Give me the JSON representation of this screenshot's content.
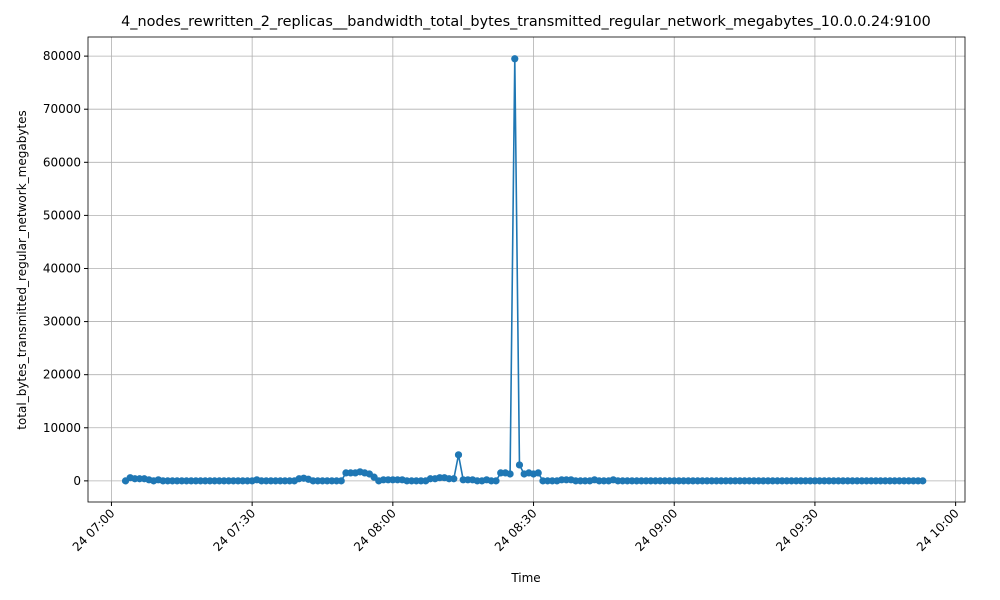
{
  "chart_data": {
    "type": "line",
    "title": "4_nodes_rewritten_2_replicas__bandwidth_total_bytes_transmitted_regular_network_megabytes_10.0.0.24:9100",
    "xlabel": "Time",
    "ylabel": "total_bytes_transmitted_regular_network_megabytes",
    "x": [
      "24 07:03",
      "24 07:04",
      "24 07:05",
      "24 07:06",
      "24 07:07",
      "24 07:08",
      "24 07:09",
      "24 07:10",
      "24 07:11",
      "24 07:12",
      "24 07:13",
      "24 07:14",
      "24 07:15",
      "24 07:16",
      "24 07:17",
      "24 07:18",
      "24 07:19",
      "24 07:20",
      "24 07:21",
      "24 07:22",
      "24 07:23",
      "24 07:24",
      "24 07:25",
      "24 07:26",
      "24 07:27",
      "24 07:28",
      "24 07:29",
      "24 07:30",
      "24 07:31",
      "24 07:32",
      "24 07:33",
      "24 07:34",
      "24 07:35",
      "24 07:36",
      "24 07:37",
      "24 07:38",
      "24 07:39",
      "24 07:40",
      "24 07:41",
      "24 07:42",
      "24 07:43",
      "24 07:44",
      "24 07:45",
      "24 07:46",
      "24 07:47",
      "24 07:48",
      "24 07:49",
      "24 07:50",
      "24 07:51",
      "24 07:52",
      "24 07:53",
      "24 07:54",
      "24 07:55",
      "24 07:56",
      "24 07:57",
      "24 07:58",
      "24 07:59",
      "24 08:00",
      "24 08:01",
      "24 08:02",
      "24 08:03",
      "24 08:04",
      "24 08:05",
      "24 08:06",
      "24 08:07",
      "24 08:08",
      "24 08:09",
      "24 08:10",
      "24 08:11",
      "24 08:12",
      "24 08:13",
      "24 08:14",
      "24 08:15",
      "24 08:16",
      "24 08:17",
      "24 08:18",
      "24 08:19",
      "24 08:20",
      "24 08:21",
      "24 08:22",
      "24 08:23",
      "24 08:24",
      "24 08:25",
      "24 08:26",
      "24 08:27",
      "24 08:28",
      "24 08:29",
      "24 08:30",
      "24 08:31",
      "24 08:32",
      "24 08:33",
      "24 08:34",
      "24 08:35",
      "24 08:36",
      "24 08:37",
      "24 08:38",
      "24 08:39",
      "24 08:40",
      "24 08:41",
      "24 08:42",
      "24 08:43",
      "24 08:44",
      "24 08:45",
      "24 08:46",
      "24 08:47",
      "24 08:48",
      "24 08:49",
      "24 08:50",
      "24 08:51",
      "24 08:52",
      "24 08:53",
      "24 08:54",
      "24 08:55",
      "24 08:56",
      "24 08:57",
      "24 08:58",
      "24 08:59",
      "24 09:00",
      "24 09:01",
      "24 09:02",
      "24 09:03",
      "24 09:04",
      "24 09:05",
      "24 09:06",
      "24 09:07",
      "24 09:08",
      "24 09:09",
      "24 09:10",
      "24 09:11",
      "24 09:12",
      "24 09:13",
      "24 09:14",
      "24 09:15",
      "24 09:16",
      "24 09:17",
      "24 09:18",
      "24 09:19",
      "24 09:20",
      "24 09:21",
      "24 09:22",
      "24 09:23",
      "24 09:24",
      "24 09:25",
      "24 09:26",
      "24 09:27",
      "24 09:28",
      "24 09:29",
      "24 09:30",
      "24 09:31",
      "24 09:32",
      "24 09:33",
      "24 09:34",
      "24 09:35",
      "24 09:36",
      "24 09:37",
      "24 09:38",
      "24 09:39",
      "24 09:40",
      "24 09:41",
      "24 09:42",
      "24 09:43",
      "24 09:44",
      "24 09:45",
      "24 09:46",
      "24 09:47",
      "24 09:48",
      "24 09:49",
      "24 09:50",
      "24 09:51",
      "24 09:52",
      "24 09:53"
    ],
    "series": [
      {
        "color": "#1f77b4",
        "values": [
          0,
          600,
          400,
          400,
          400,
          200,
          0,
          200,
          0,
          0,
          0,
          0,
          0,
          0,
          0,
          0,
          0,
          0,
          0,
          0,
          0,
          0,
          0,
          0,
          0,
          0,
          0,
          0,
          200,
          0,
          0,
          0,
          0,
          0,
          0,
          0,
          0,
          400,
          500,
          300,
          0,
          0,
          0,
          0,
          0,
          0,
          0,
          1500,
          1500,
          1500,
          1700,
          1500,
          1300,
          700,
          0,
          200,
          200,
          200,
          200,
          200,
          0,
          0,
          0,
          0,
          0,
          400,
          400,
          600,
          600,
          400,
          400,
          4900,
          200,
          200,
          200,
          0,
          0,
          200,
          0,
          0,
          1500,
          1500,
          1300,
          79500,
          3000,
          1300,
          1500,
          1300,
          1500,
          0,
          0,
          0,
          0,
          200,
          200,
          200,
          0,
          0,
          0,
          0,
          200,
          0,
          0,
          0,
          200,
          0,
          0,
          0,
          0,
          0,
          0,
          0,
          0,
          0,
          0,
          0,
          0,
          0,
          0,
          0,
          0,
          0,
          0,
          0,
          0,
          0,
          0,
          0,
          0,
          0,
          0,
          0,
          0,
          0,
          0,
          0,
          0,
          0,
          0,
          0,
          0,
          0,
          0,
          0,
          0,
          0,
          0,
          0,
          0,
          0,
          0,
          0,
          0,
          0,
          0,
          0,
          0,
          0,
          0,
          0,
          0,
          0,
          0,
          0,
          0,
          0,
          0,
          0,
          0,
          0,
          0
        ]
      }
    ],
    "xlim": [
      "24 06:55",
      "24 10:02"
    ],
    "xticks": [
      "24 07:00",
      "24 07:30",
      "24 08:00",
      "24 08:30",
      "24 09:00",
      "24 09:30",
      "24 10:00"
    ],
    "ylim": [
      -3980,
      83600
    ],
    "yticks": [
      0,
      10000,
      20000,
      30000,
      40000,
      50000,
      60000,
      70000,
      80000
    ],
    "grid": true
  }
}
